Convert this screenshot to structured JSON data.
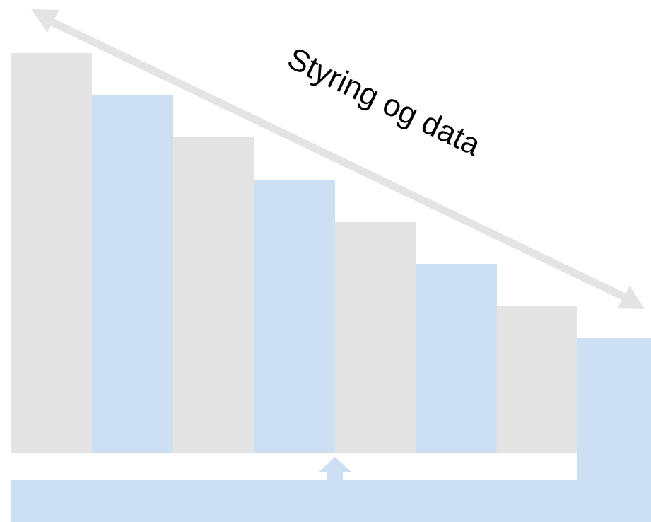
{
  "diagram": {
    "arrow_label": "Styring og data",
    "columns": [
      {
        "color": "#e4e4e4"
      },
      {
        "color": "#cddff2"
      },
      {
        "color": "#e4e4e4"
      },
      {
        "color": "#cddff2"
      },
      {
        "color": "#e4e4e4"
      },
      {
        "color": "#cddff2"
      },
      {
        "color": "#e4e4e4"
      },
      {
        "color": "#cddff2"
      }
    ],
    "colors": {
      "gray": "#e4e4e4",
      "blue": "#cddff2",
      "arrow": "#e4e4e4"
    }
  }
}
